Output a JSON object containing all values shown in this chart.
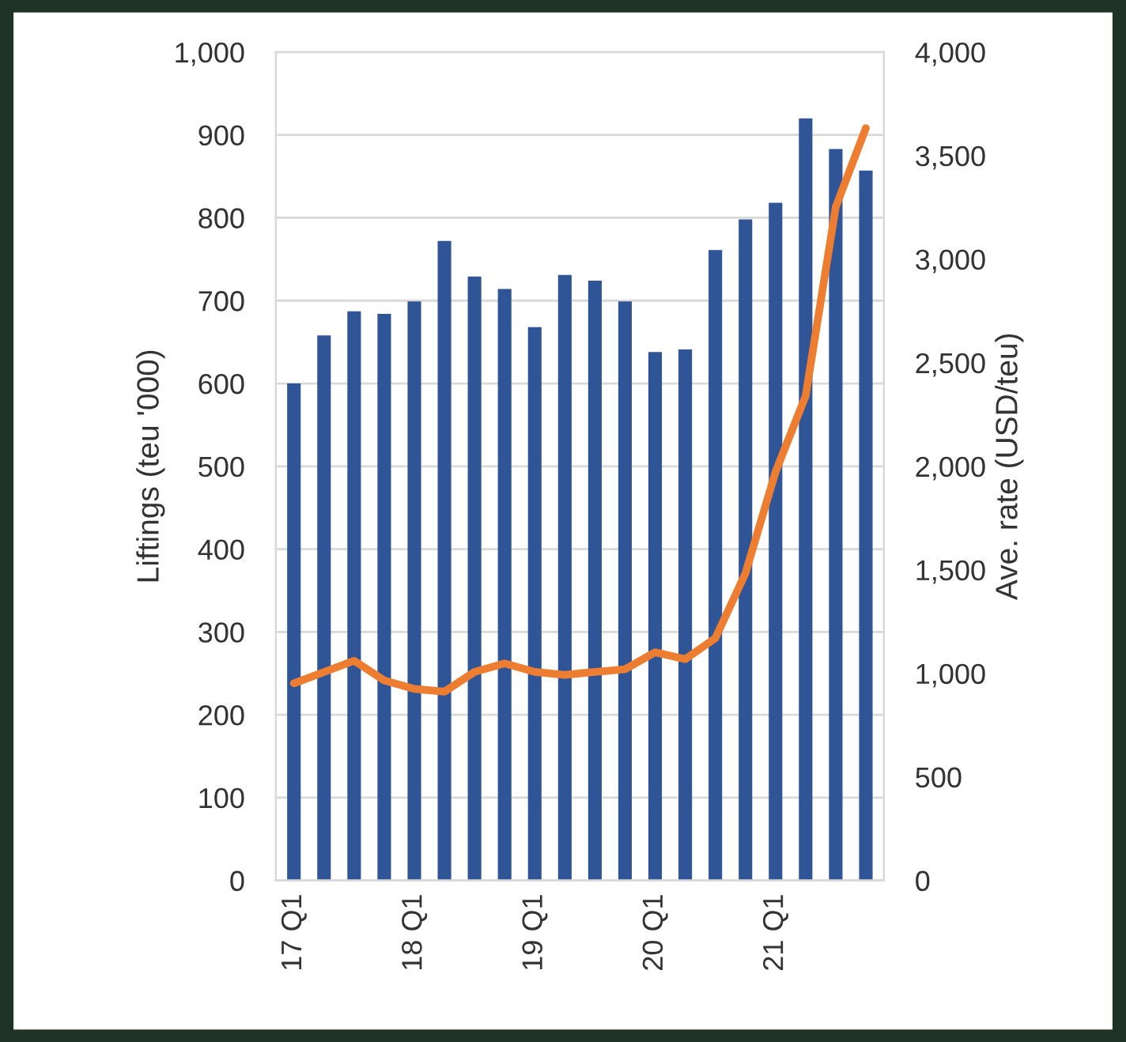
{
  "chart_data": {
    "type": "bar",
    "categories": [
      "17 Q1",
      null,
      null,
      null,
      "18 Q1",
      null,
      null,
      null,
      "19 Q1",
      null,
      null,
      null,
      "20 Q1",
      null,
      null,
      null,
      "21 Q1",
      null,
      null,
      null
    ],
    "ylabel": "Liftings (teu '000)",
    "y2label": "Ave. rate (USD/teu)",
    "series": [
      {
        "color": "#2f5597",
        "values": [
          600,
          658,
          687,
          684,
          699,
          772,
          729,
          714,
          668,
          731,
          724,
          699,
          638,
          641,
          761,
          798,
          818,
          920,
          883,
          857
        ]
      },
      {
        "type": "line",
        "axis": "y2",
        "color": "#ed7d31",
        "values": [
          952,
          1007,
          1061,
          966,
          925,
          912,
          1007,
          1048,
          1007,
          993,
          1007,
          1020,
          1102,
          1069,
          1170,
          1483,
          1973,
          2340,
          3252,
          3633
        ]
      }
    ],
    "ylim": [
      0,
      1000
    ],
    "yticks": [
      0,
      100,
      200,
      300,
      400,
      500,
      600,
      700,
      800,
      900,
      {
        "value": 1000,
        "label": "1,000"
      }
    ],
    "y2lim": [
      0,
      4000
    ],
    "y2ticks": [
      0,
      500,
      {
        "value": 1000,
        "label": "1,000"
      },
      {
        "value": 1500,
        "label": "1,500"
      },
      {
        "value": 2000,
        "label": "2,000"
      },
      {
        "value": 2500,
        "label": "2,500"
      },
      {
        "value": 3000,
        "label": "3,000"
      },
      {
        "value": 3500,
        "label": "3,500"
      },
      {
        "value": 4000,
        "label": "4,000"
      }
    ],
    "grid": "y",
    "marker": "none",
    "line_style": "solid"
  }
}
